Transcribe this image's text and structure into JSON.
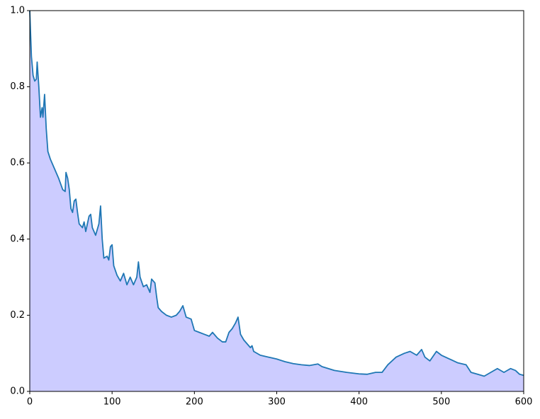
{
  "chart_data": {
    "type": "area",
    "x": [
      0,
      2,
      4,
      6,
      8,
      9,
      11,
      13,
      15,
      16,
      18,
      20,
      22,
      25,
      30,
      35,
      40,
      43,
      44,
      46,
      48,
      50,
      52,
      54,
      56,
      58,
      60,
      64,
      66,
      68,
      72,
      74,
      76,
      80,
      84,
      86,
      88,
      90,
      94,
      96,
      98,
      100,
      102,
      106,
      110,
      114,
      118,
      122,
      126,
      130,
      132,
      134,
      138,
      142,
      146,
      148,
      152,
      154,
      156,
      160,
      166,
      172,
      178,
      182,
      186,
      190,
      196,
      200,
      206,
      212,
      218,
      222,
      228,
      234,
      238,
      242,
      246,
      250,
      253,
      256,
      260,
      264,
      268,
      270,
      272,
      280,
      290,
      300,
      310,
      320,
      330,
      340,
      350,
      355,
      370,
      385,
      400,
      410,
      420,
      428,
      435,
      445,
      455,
      462,
      470,
      476,
      480,
      486,
      494,
      500,
      510,
      520,
      530,
      536,
      544,
      552,
      560,
      568,
      576,
      584,
      590,
      595,
      600
    ],
    "series": [
      {
        "color": "#1f77b4",
        "fill_color": "#ccccff",
        "values": [
          1.0,
          0.88,
          0.83,
          0.815,
          0.82,
          0.865,
          0.8,
          0.72,
          0.745,
          0.72,
          0.78,
          0.69,
          0.63,
          0.61,
          0.585,
          0.56,
          0.53,
          0.525,
          0.575,
          0.56,
          0.53,
          0.48,
          0.47,
          0.5,
          0.505,
          0.47,
          0.44,
          0.43,
          0.445,
          0.42,
          0.46,
          0.465,
          0.43,
          0.41,
          0.44,
          0.487,
          0.4,
          0.35,
          0.355,
          0.345,
          0.38,
          0.385,
          0.33,
          0.305,
          0.29,
          0.31,
          0.28,
          0.3,
          0.28,
          0.3,
          0.34,
          0.3,
          0.275,
          0.28,
          0.26,
          0.295,
          0.285,
          0.25,
          0.22,
          0.21,
          0.2,
          0.195,
          0.2,
          0.21,
          0.225,
          0.195,
          0.19,
          0.16,
          0.155,
          0.15,
          0.145,
          0.155,
          0.14,
          0.13,
          0.13,
          0.155,
          0.165,
          0.18,
          0.195,
          0.15,
          0.135,
          0.125,
          0.115,
          0.12,
          0.105,
          0.095,
          0.09,
          0.085,
          0.078,
          0.073,
          0.07,
          0.068,
          0.072,
          0.065,
          0.055,
          0.05,
          0.046,
          0.045,
          0.05,
          0.05,
          0.07,
          0.09,
          0.1,
          0.105,
          0.095,
          0.11,
          0.09,
          0.08,
          0.105,
          0.095,
          0.085,
          0.075,
          0.07,
          0.05,
          0.045,
          0.04,
          0.05,
          0.06,
          0.05,
          0.06,
          0.055,
          0.045,
          0.042
        ]
      }
    ],
    "xlim": [
      0,
      600
    ],
    "xticks": [
      0,
      100,
      200,
      300,
      400,
      500,
      600
    ],
    "ylim": [
      0,
      1
    ],
    "yticks": [
      {
        "value": 0,
        "label": "0.0"
      },
      0.2,
      0.4,
      0.6,
      0.8,
      {
        "value": 1,
        "label": "1.0"
      }
    ]
  }
}
